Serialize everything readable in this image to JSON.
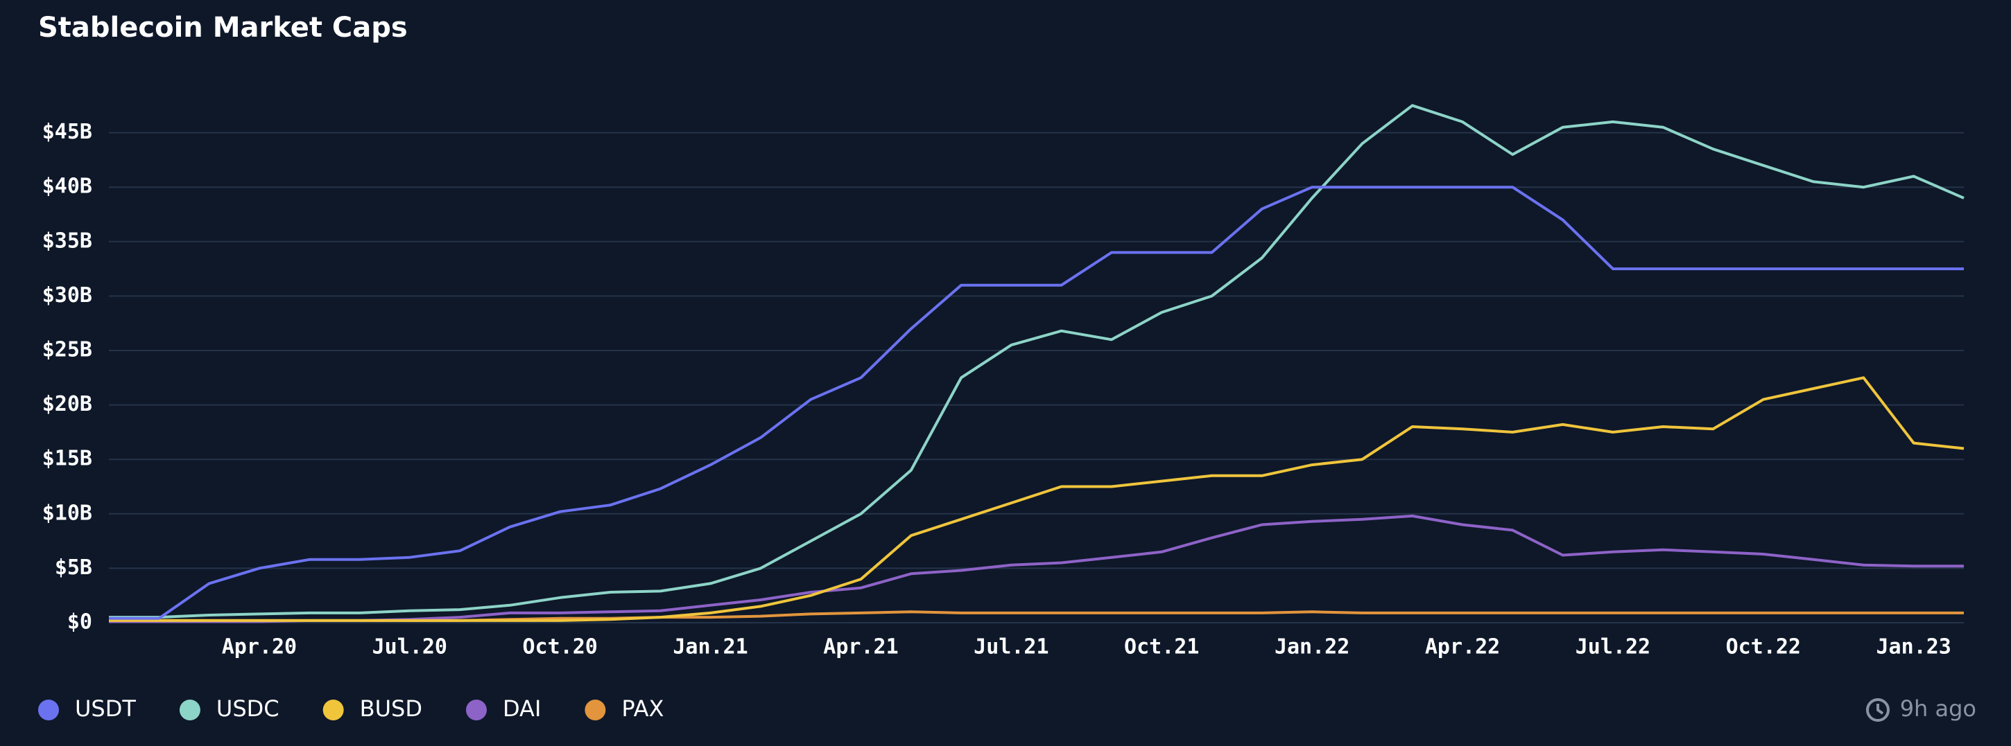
{
  "chart_data": {
    "type": "line",
    "title": "Stablecoin Market Caps",
    "categories": [
      null,
      null,
      null,
      "Apr.20",
      null,
      null,
      "Jul.20",
      null,
      null,
      "Oct.20",
      null,
      null,
      "Jan.21",
      null,
      null,
      "Apr.21",
      null,
      null,
      "Jul.21",
      null,
      null,
      "Oct.21",
      null,
      null,
      "Jan.22",
      null,
      null,
      "Apr.22",
      null,
      null,
      "Jul.22",
      null,
      null,
      "Oct.22",
      null,
      null,
      "Jan.23",
      null
    ],
    "series": [
      {
        "name": "USDT",
        "color": "#6b72f0",
        "values": [
          0.4,
          0.4,
          3.6,
          5.0,
          5.8,
          5.8,
          6.0,
          6.6,
          8.8,
          10.2,
          10.8,
          12.3,
          14.5,
          17,
          20.5,
          22.5,
          27,
          31,
          31,
          31,
          34,
          34,
          34,
          38,
          40,
          40,
          40,
          40,
          40,
          37,
          32.5,
          32.5,
          32.5,
          32.5,
          32.5,
          32.5,
          32.5,
          32.5
        ]
      },
      {
        "name": "USDC",
        "color": "#8dd4c8",
        "values": [
          0.5,
          0.5,
          0.7,
          0.8,
          0.9,
          0.9,
          1.1,
          1.2,
          1.6,
          2.3,
          2.8,
          2.9,
          3.6,
          5.0,
          7.5,
          10.0,
          14.0,
          22.5,
          25.5,
          26.8,
          26.0,
          28.5,
          30.0,
          33.5,
          39,
          44,
          47.5,
          46,
          43,
          45.5,
          46,
          45.5,
          43.5,
          42,
          40.5,
          40,
          41,
          39
        ]
      },
      {
        "name": "BUSD",
        "color": "#f0c53c",
        "values": [
          0.2,
          0.2,
          0.2,
          0.2,
          0.2,
          0.2,
          0.2,
          0.2,
          0.2,
          0.2,
          0.3,
          0.5,
          0.9,
          1.5,
          2.5,
          4,
          8,
          9.5,
          11,
          12.5,
          12.5,
          13,
          13.5,
          13.5,
          14.5,
          15,
          18,
          17.8,
          17.5,
          18.2,
          17.5,
          18,
          17.8,
          20.5,
          21.5,
          22.5,
          16.5,
          16
        ]
      },
      {
        "name": "DAI",
        "color": "#8e63c8",
        "values": [
          0.1,
          0.1,
          0.1,
          0.1,
          0.2,
          0.2,
          0.3,
          0.5,
          0.9,
          0.9,
          1.0,
          1.1,
          1.6,
          2.1,
          2.8,
          3.2,
          4.5,
          4.8,
          5.3,
          5.5,
          6.0,
          6.5,
          7.8,
          9.0,
          9.3,
          9.5,
          9.8,
          9.0,
          8.5,
          6.2,
          6.5,
          6.7,
          6.5,
          6.3,
          5.8,
          5.3,
          5.2,
          5.2
        ]
      },
      {
        "name": "PAX",
        "color": "#e2953d",
        "values": [
          0.2,
          0.2,
          0.2,
          0.2,
          0.2,
          0.2,
          0.2,
          0.2,
          0.3,
          0.4,
          0.4,
          0.5,
          0.5,
          0.6,
          0.8,
          0.9,
          1.0,
          0.9,
          0.9,
          0.9,
          0.9,
          0.9,
          0.9,
          0.9,
          1.0,
          0.9,
          0.9,
          0.9,
          0.9,
          0.9,
          0.9,
          0.9,
          0.9,
          0.9,
          0.9,
          0.9,
          0.9,
          0.9
        ]
      }
    ],
    "ylim": [
      0,
      50
    ],
    "yticks": [
      {
        "value": 0,
        "label": "$0"
      },
      {
        "value": 5,
        "label": "$5B"
      },
      {
        "value": 10,
        "label": "$10B"
      },
      {
        "value": 15,
        "label": "$15B"
      },
      {
        "value": 20,
        "label": "$20B"
      },
      {
        "value": 25,
        "label": "$25B"
      },
      {
        "value": 30,
        "label": "$30B"
      },
      {
        "value": 35,
        "label": "$35B"
      },
      {
        "value": 40,
        "label": "$40B"
      },
      {
        "value": 45,
        "label": "$45B"
      }
    ],
    "grid": true,
    "legend": "bottom-left",
    "updated": "9h ago"
  }
}
